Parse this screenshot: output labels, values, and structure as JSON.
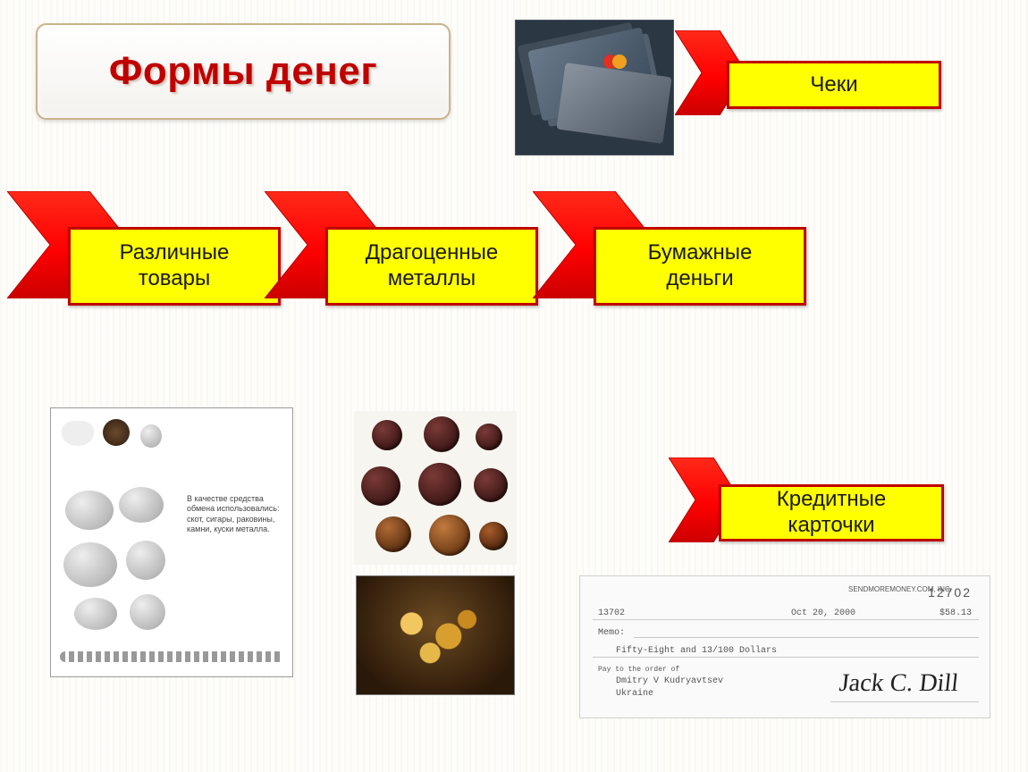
{
  "title": "Формы денег",
  "items": {
    "cheques": {
      "label": "Чеки"
    },
    "goods": {
      "label": "Различные\nтовары"
    },
    "metals": {
      "label": "Драгоценные\nметаллы"
    },
    "paper": {
      "label": "Бумажные\nденьги"
    },
    "credit": {
      "label": "Кредитные\nкарточки"
    }
  },
  "shells_caption": "В качестве средства обмена использовались: скот, сигары, раковины, камни, куски металла.",
  "cheque": {
    "company": "SENDMOREMONEY.COM, INC.",
    "number": "12702",
    "date": "Oct 20, 2000",
    "amount_num": "$58.13",
    "seq": "13702",
    "amount_words": "Fifty-Eight and 13/100 Dollars",
    "payee_label": "Pay to the order of",
    "payee": "Dmitry V Kudryavtsev",
    "country": "Ukraine",
    "memo_label": "Memo:",
    "signature": "Jack C. Dill"
  },
  "colors": {
    "arrow_fill": "#ff0000",
    "arrow_stroke": "#b00000",
    "label_bg": "#ffff00",
    "label_border": "#c00000",
    "title_color": "#c00000"
  }
}
